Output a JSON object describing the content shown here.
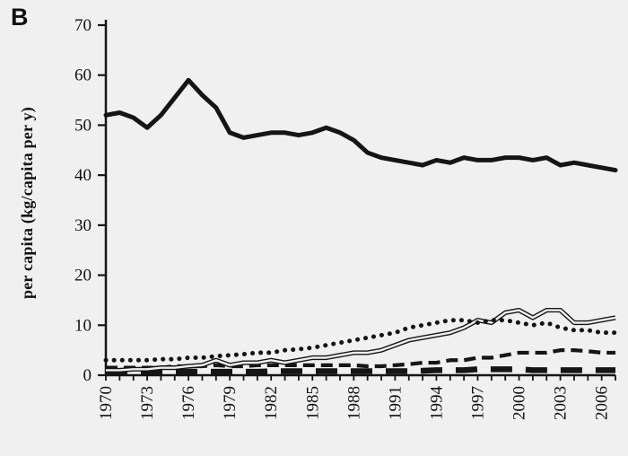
{
  "figure_label": "B",
  "chart_data": {
    "type": "line",
    "title": "",
    "xlabel": "",
    "ylabel": "per capita (kg/capita per y)",
    "ylim": [
      0,
      70
    ],
    "yticks": [
      0,
      10,
      20,
      30,
      40,
      50,
      60,
      70
    ],
    "x": [
      1970,
      1971,
      1972,
      1973,
      1974,
      1975,
      1976,
      1977,
      1978,
      1979,
      1980,
      1981,
      1982,
      1983,
      1984,
      1985,
      1986,
      1987,
      1988,
      1989,
      1990,
      1991,
      1992,
      1993,
      1994,
      1995,
      1996,
      1997,
      1998,
      1999,
      2000,
      2001,
      2002,
      2003,
      2004,
      2005,
      2006,
      2007
    ],
    "xtick_labels": [
      "1970",
      "1973",
      "1976",
      "1979",
      "1982",
      "1985",
      "1988",
      "1991",
      "1994",
      "1997",
      "2000",
      "2003",
      "2006"
    ],
    "grid": false,
    "legend": "none",
    "series": [
      {
        "name": "solid-thick",
        "style": "solid",
        "values": [
          52,
          52.5,
          51.5,
          49.5,
          52,
          55.5,
          59,
          56,
          53.5,
          48.5,
          47.5,
          48,
          48.5,
          48.5,
          48,
          48.5,
          49.5,
          48.5,
          47,
          44.5,
          43.5,
          43,
          42.5,
          42,
          43,
          42.5,
          43.5,
          43,
          43,
          43.5,
          43.5,
          43,
          43.5,
          42,
          42.5,
          42,
          41.5,
          41
        ]
      },
      {
        "name": "long-dash-thick",
        "style": "long-dash",
        "values": [
          0.7,
          0.7,
          0.7,
          0.7,
          0.7,
          0.7,
          0.7,
          0.7,
          0.7,
          0.7,
          0.7,
          0.7,
          0.8,
          0.8,
          0.8,
          0.8,
          0.8,
          0.8,
          0.8,
          0.8,
          0.8,
          0.8,
          0.8,
          0.9,
          1,
          1,
          1,
          1.2,
          1.2,
          1.2,
          1.2,
          1,
          1,
          1,
          1,
          1,
          1,
          1
        ]
      },
      {
        "name": "dashed",
        "style": "dashed",
        "values": [
          1.5,
          1.5,
          1.5,
          1.5,
          1.5,
          1.8,
          1.8,
          1.8,
          2,
          1.8,
          1.8,
          2,
          2,
          2,
          2,
          2,
          2,
          2,
          2,
          1.8,
          1.8,
          2,
          2.2,
          2.5,
          2.5,
          3,
          3,
          3.5,
          3.5,
          4,
          4.5,
          4.5,
          4.5,
          5,
          5,
          4.8,
          4.5,
          4.5
        ]
      },
      {
        "name": "double-line",
        "style": "double",
        "values": [
          1,
          1,
          1.2,
          1.2,
          1.5,
          1.5,
          1.8,
          2,
          3,
          2,
          2.5,
          2.5,
          3,
          2.5,
          3,
          3.5,
          3.5,
          4,
          4.5,
          4.5,
          5,
          6,
          7,
          7.5,
          8,
          8.5,
          9.5,
          11,
          10.5,
          12.5,
          13,
          11.5,
          13,
          13,
          10.5,
          10.5,
          11,
          11.5
        ]
      },
      {
        "name": "dotted",
        "style": "dotted",
        "values": [
          3,
          3,
          3,
          3,
          3.2,
          3.2,
          3.5,
          3.5,
          3.8,
          4,
          4.2,
          4.5,
          4.5,
          5,
          5.2,
          5.5,
          6,
          6.5,
          7,
          7.5,
          8,
          8.5,
          9.5,
          10,
          10.5,
          11,
          11,
          10.5,
          11,
          11,
          10.5,
          10,
          10.5,
          9.5,
          9,
          9,
          8.5,
          8.5
        ]
      }
    ],
    "colors": {
      "line": "#151515",
      "background": "#f0f0f0"
    }
  }
}
